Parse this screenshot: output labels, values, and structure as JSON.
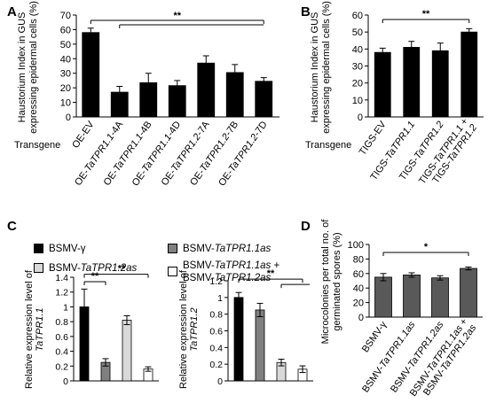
{
  "chart_data": [
    {
      "id": "A",
      "panel_letter": "A",
      "type": "bar",
      "ylabel_lines": [
        "Haustorium Index in GUS",
        "expressing  epidermal cells (%)"
      ],
      "row_label": "Transgene",
      "categories": [
        "OE-EV",
        "OE-TaTPR1.1-4A",
        "OE-TaTPR1.1-4B",
        "OE-TaTPR1.1-4D",
        "OE-TaTPR1.2-7A",
        "OE-TaTPR1.2-7B",
        "OE-TaTPR1.2-7D"
      ],
      "values": [
        58,
        17,
        23.5,
        21.5,
        37,
        30.5,
        24.5
      ],
      "errors": [
        3,
        4,
        6.5,
        3.5,
        5,
        5.5,
        2.5
      ],
      "ylim": [
        0,
        70
      ],
      "yticks": [
        0,
        10,
        20,
        30,
        40,
        50,
        60,
        70
      ],
      "tick_labels": [
        "0",
        "10",
        "20",
        "30",
        "40",
        "50",
        "60",
        "70"
      ],
      "bar_color": "#000000",
      "significance": "**"
    },
    {
      "id": "B",
      "panel_letter": "B",
      "type": "bar",
      "ylabel_lines": [
        "Haustorium Index in GUS",
        "expressing  epidermal cells (%)"
      ],
      "row_label": "Transgene",
      "categories": [
        "TIGS-EV",
        "TIGS-TaTPR1.1",
        "TIGS-TaTPR1.2",
        "TIGS-TaTPR1.1 + TIGS-TaTPR1.2"
      ],
      "values": [
        38,
        41,
        39,
        50
      ],
      "errors": [
        2.5,
        3.5,
        4.5,
        2
      ],
      "ylim": [
        0,
        60
      ],
      "yticks": [
        0,
        10,
        20,
        30,
        40,
        50,
        60
      ],
      "tick_labels": [
        "0",
        "10",
        "20",
        "30",
        "40",
        "50",
        "60"
      ],
      "bar_color": "#000000",
      "significance": "**"
    },
    {
      "id": "C1",
      "panel_letter": "C",
      "type": "bar",
      "ylabel_lines": [
        "Relative expression level of",
        "TaTPR1.1"
      ],
      "categories": [
        "BSMV-γ",
        "BSMV-TaTPR1.1as",
        "BSMV-TaTPR1.2as",
        "BSMV-TaTPR1.1as + BSMV-TaTPR1.2as"
      ],
      "values": [
        1.0,
        0.25,
        0.82,
        0.16
      ],
      "errors": [
        0.24,
        0.05,
        0.06,
        0.03
      ],
      "ylim": [
        0,
        1.4
      ],
      "yticks": [
        0,
        0.2,
        0.4,
        0.6,
        0.8,
        1.0,
        1.2,
        1.4
      ],
      "tick_labels": [
        "0",
        "0.2",
        "0.4",
        "0.6",
        "0.8",
        "1",
        "1.2",
        "1.4"
      ],
      "significance": [
        "**",
        "**"
      ]
    },
    {
      "id": "C2",
      "type": "bar",
      "ylabel_lines": [
        "Relative expression level of",
        "TaTPR1.2"
      ],
      "categories": [
        "BSMV-γ",
        "BSMV-TaTPR1.1as",
        "BSMV-TaTPR1.2as",
        "BSMV-TaTPR1.1as + BSMV-TaTPR1.2as"
      ],
      "values": [
        1.0,
        0.85,
        0.22,
        0.14
      ],
      "errors": [
        0.06,
        0.08,
        0.04,
        0.04
      ],
      "ylim": [
        0,
        1.2
      ],
      "yticks": [
        0,
        0.2,
        0.4,
        0.6,
        0.8,
        1.0,
        1.2
      ],
      "tick_labels": [
        "0",
        "0.2",
        "0.4",
        "0.6",
        "0.8",
        "1",
        "1.2"
      ],
      "significance": "**"
    },
    {
      "id": "D",
      "panel_letter": "D",
      "type": "bar",
      "ylabel_lines": [
        "Microcolonies per total no. of",
        "germinated spores (%)"
      ],
      "categories": [
        "BSMV-γ",
        "BSMV-TaTPR1.1as",
        "BSMV-TaTPR1.2as",
        "BSMV-TaTPR1.1as + BSMV-TaTPR1.2as"
      ],
      "values": [
        55,
        58,
        54,
        67
      ],
      "errors": [
        5,
        3,
        3,
        2
      ],
      "ylim": [
        0,
        100
      ],
      "yticks": [
        0,
        20,
        40,
        60,
        80,
        100
      ],
      "tick_labels": [
        "0",
        "20",
        "40",
        "60",
        "80",
        "100"
      ],
      "bar_color": "#595959",
      "significance": "*"
    }
  ],
  "legend": {
    "entries": [
      {
        "label": "BSMV-γ",
        "color": "#000000"
      },
      {
        "label": "BSMV-TaTPR1.1as",
        "color": "#808080"
      },
      {
        "label": "BSMV-TaTPR1.2as",
        "color": "#d9d9d9"
      },
      {
        "label": "BSMV-TaTPR1.1as + BSMV-TaTPR1.2as",
        "color": "#ffffff"
      }
    ]
  }
}
